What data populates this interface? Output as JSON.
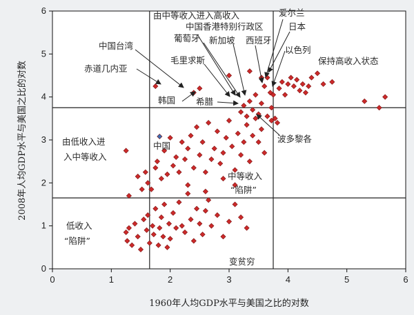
{
  "chart_data": {
    "type": "scatter",
    "xlabel": "1960年人均GDP水平与美国之比的对数",
    "ylabel": "2008年人均GDP水平与美国之比的对数",
    "xlim": [
      0,
      6
    ],
    "ylim": [
      0,
      6
    ],
    "xticks": [
      "0",
      "1",
      "2",
      "3",
      "4",
      "5",
      "6"
    ],
    "yticks": [
      "0",
      "1",
      "2",
      "3",
      "4",
      "5",
      "6"
    ],
    "grid": false,
    "thresholds": {
      "x1": 1.65,
      "x2": 3.75,
      "y1": 1.65,
      "y2": 3.75
    },
    "colors": {
      "points": "#cc2a2a",
      "china": "#3a6fb5",
      "lines": "#222222"
    },
    "series": [
      {
        "values": [
          [
            1.25,
            0.85
          ],
          [
            1.27,
            0.65
          ],
          [
            1.3,
            0.95
          ],
          [
            1.35,
            0.55
          ],
          [
            1.4,
            1.05
          ],
          [
            1.45,
            0.75
          ],
          [
            1.5,
            0.45
          ],
          [
            1.55,
            1.15
          ],
          [
            1.6,
            0.9
          ],
          [
            1.62,
            1.25
          ],
          [
            1.65,
            0.6
          ],
          [
            1.7,
            1.0
          ],
          [
            1.72,
            0.8
          ],
          [
            1.75,
            1.4
          ],
          [
            1.8,
            0.55
          ],
          [
            1.82,
            0.95
          ],
          [
            1.85,
            1.2
          ],
          [
            1.88,
            0.75
          ],
          [
            1.9,
            1.5
          ],
          [
            1.95,
            0.5
          ],
          [
            1.98,
            1.05
          ],
          [
            2.0,
            0.7
          ],
          [
            2.05,
            1.3
          ],
          [
            2.1,
            0.95
          ],
          [
            2.15,
            1.55
          ],
          [
            2.2,
            1.0
          ],
          [
            2.25,
            0.85
          ],
          [
            2.3,
            1.75
          ],
          [
            2.35,
            1.15
          ],
          [
            2.4,
            0.65
          ],
          [
            2.45,
            1.4
          ],
          [
            2.5,
            1.05
          ],
          [
            2.55,
            0.8
          ],
          [
            2.6,
            1.35
          ],
          [
            2.65,
            1.6
          ],
          [
            2.7,
            1.0
          ],
          [
            2.8,
            1.25
          ],
          [
            2.9,
            0.75
          ],
          [
            3.0,
            1.1
          ],
          [
            3.1,
            1.5
          ],
          [
            3.2,
            1.2
          ],
          [
            3.3,
            0.95
          ],
          [
            1.25,
            2.75
          ],
          [
            1.3,
            1.7
          ],
          [
            1.45,
            2.15
          ],
          [
            1.52,
            1.85
          ],
          [
            1.58,
            2.25
          ],
          [
            1.62,
            2.0
          ],
          [
            1.68,
            1.85
          ],
          [
            1.75,
            2.35
          ],
          [
            1.78,
            2.5
          ],
          [
            1.85,
            2.1
          ],
          [
            1.9,
            2.75
          ],
          [
            1.95,
            2.2
          ],
          [
            2.0,
            3.05
          ],
          [
            2.05,
            2.4
          ],
          [
            2.1,
            2.6
          ],
          [
            2.15,
            2.25
          ],
          [
            2.2,
            2.95
          ],
          [
            2.25,
            2.55
          ],
          [
            2.3,
            2.8
          ],
          [
            2.35,
            3.1
          ],
          [
            2.4,
            2.35
          ],
          [
            2.45,
            3.3
          ],
          [
            2.5,
            2.65
          ],
          [
            2.55,
            2.95
          ],
          [
            2.6,
            2.25
          ],
          [
            2.65,
            3.4
          ],
          [
            2.7,
            2.55
          ],
          [
            2.75,
            2.8
          ],
          [
            2.8,
            3.2
          ],
          [
            2.85,
            2.45
          ],
          [
            2.9,
            2.7
          ],
          [
            2.95,
            3.05
          ],
          [
            3.0,
            3.45
          ],
          [
            3.05,
            2.85
          ],
          [
            3.1,
            2.3
          ],
          [
            3.15,
            3.15
          ],
          [
            3.2,
            2.65
          ],
          [
            3.25,
            2.95
          ],
          [
            3.3,
            3.35
          ],
          [
            3.35,
            2.5
          ],
          [
            3.4,
            3.1
          ],
          [
            3.45,
            3.5
          ],
          [
            3.5,
            2.95
          ],
          [
            3.55,
            3.25
          ],
          [
            3.6,
            2.7
          ],
          [
            3.65,
            3.55
          ],
          [
            2.3,
            1.95
          ],
          [
            2.6,
            1.8
          ],
          [
            2.9,
            2.1
          ],
          [
            3.1,
            1.95
          ],
          [
            3.2,
            3.65
          ],
          [
            3.25,
            3.8
          ],
          [
            3.3,
            3.55
          ],
          [
            3.35,
            3.9
          ],
          [
            3.4,
            3.7
          ],
          [
            3.45,
            4.05
          ],
          [
            3.5,
            3.6
          ],
          [
            3.55,
            3.85
          ],
          [
            3.6,
            4.25
          ],
          [
            3.65,
            4.45
          ],
          [
            3.7,
            4.1
          ],
          [
            3.72,
            3.75
          ],
          [
            3.78,
            3.5
          ],
          [
            3.82,
            3.4
          ],
          [
            3.85,
            4.2
          ],
          [
            3.9,
            4.35
          ],
          [
            3.95,
            4.05
          ],
          [
            4.0,
            4.3
          ],
          [
            4.05,
            4.45
          ],
          [
            4.1,
            4.25
          ],
          [
            4.15,
            4.4
          ],
          [
            4.2,
            4.15
          ],
          [
            4.25,
            4.3
          ],
          [
            4.3,
            4.1
          ],
          [
            4.35,
            4.25
          ],
          [
            4.4,
            4.45
          ],
          [
            4.5,
            4.55
          ],
          [
            4.6,
            4.3
          ],
          [
            4.75,
            4.35
          ],
          [
            5.3,
            3.9
          ],
          [
            5.55,
            3.75
          ],
          [
            5.65,
            4.0
          ],
          [
            1.75,
            4.25
          ],
          [
            2.4,
            4.1
          ],
          [
            2.5,
            4.2
          ],
          [
            3.0,
            4.5
          ],
          [
            3.35,
            4.6
          ],
          [
            3.55,
            4.45
          ],
          [
            3.75,
            4.05
          ],
          [
            3.72,
            3.45
          ]
        ]
      },
      {
        "values": [
          [
            1.82,
            3.08
          ]
        ]
      }
    ],
    "labels": {
      "china": "中国",
      "quadrant_low_to_mid": "由低收入进\n入中等收入",
      "quadrant_low": "低收入\n“陷阱”",
      "quadrant_mid": "中等收入\n“陷阱”",
      "quadrant_poor": "变贫穷",
      "quadrant_high": "保持高收入状态",
      "mid_to_high": "由中等收入进入高收入",
      "taiwan": "中国台湾",
      "guinea": "赤道几内亚",
      "mauritius": "毛里求斯",
      "korea": "韩国",
      "greece": "希腊",
      "hongkong": "中国香港特别行政区",
      "portugal": "葡萄牙",
      "singapore": "新加坡",
      "spain": "西班牙",
      "ireland": "爱尔兰",
      "japan": "日本",
      "israel": "以色列",
      "puerto_rico": "波多黎各"
    }
  }
}
